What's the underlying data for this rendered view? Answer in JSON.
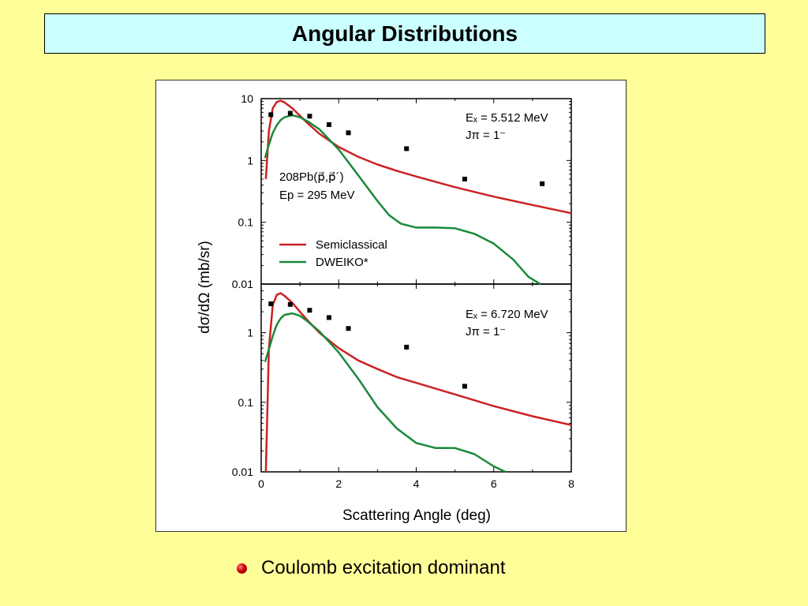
{
  "slide": {
    "title": "Angular Distributions",
    "bullets": [
      {
        "text": "Coulomb excitation dominant",
        "icon": "red-sphere-bullet-icon"
      }
    ]
  },
  "colors": {
    "background": "#ffff99",
    "title_fill": "#ccffff",
    "semiclassical": "#cc2222",
    "dweiko": "#1a8a3a",
    "data_points": "#000000"
  },
  "chart_data": [
    {
      "type": "line",
      "panel": "top",
      "xlabel": "Scattering Angle (deg)",
      "ylabel": "dσ/dΩ (mb/sr)",
      "xlim": [
        0,
        8
      ],
      "ylim": [
        0.01,
        10
      ],
      "yscale": "log",
      "yticks": [
        "10",
        "1",
        "0.1",
        "0.01"
      ],
      "xticks": [],
      "annotations": {
        "energy": "Eₓ = 5.512 MeV",
        "spin": "Jπ = 1⁻",
        "reaction": "208Pb(p⃗,p⃗´)",
        "beam": "Ep = 295 MeV"
      },
      "legend": [
        {
          "name": "Semiclassical",
          "color": "#cc2222"
        },
        {
          "name": "DWEIKO*",
          "color": "#1a8a3a"
        }
      ],
      "series": [
        {
          "name": "Semiclassical",
          "color": "#cc2222",
          "x": [
            0.12,
            0.2,
            0.3,
            0.4,
            0.5,
            0.6,
            0.8,
            1.0,
            1.2,
            1.5,
            2.0,
            2.5,
            3.0,
            3.5,
            4.0,
            5.0,
            6.0,
            7.0,
            8.0
          ],
          "y": [
            0.5,
            3.0,
            7.0,
            8.8,
            9.3,
            8.7,
            7.0,
            5.3,
            4.0,
            2.7,
            1.65,
            1.15,
            0.86,
            0.68,
            0.55,
            0.37,
            0.26,
            0.19,
            0.14
          ]
        },
        {
          "name": "DWEIKO*",
          "color": "#1a8a3a",
          "x": [
            0.1,
            0.2,
            0.3,
            0.4,
            0.5,
            0.6,
            0.8,
            1.0,
            1.2,
            1.5,
            2.0,
            2.5,
            3.0,
            3.3,
            3.6,
            4.0,
            4.5,
            5.0,
            5.5,
            6.0,
            6.5,
            6.9,
            7.2
          ],
          "y": [
            1.1,
            1.8,
            2.8,
            3.7,
            4.5,
            5.0,
            5.4,
            5.0,
            4.3,
            3.2,
            1.5,
            0.58,
            0.22,
            0.13,
            0.095,
            0.082,
            0.082,
            0.08,
            0.065,
            0.045,
            0.025,
            0.013,
            0.0085
          ]
        },
        {
          "name": "data",
          "color": "#000000",
          "type": "scatter",
          "x": [
            0.25,
            0.75,
            1.25,
            1.75,
            2.25,
            3.75,
            5.25,
            7.25
          ],
          "y": [
            5.5,
            5.8,
            5.2,
            3.8,
            2.8,
            1.55,
            0.5,
            0.42
          ]
        }
      ]
    },
    {
      "type": "line",
      "panel": "bottom",
      "xlabel": "Scattering Angle (deg)",
      "ylabel": "dσ/dΩ (mb/sr)",
      "xlim": [
        0,
        8
      ],
      "ylim": [
        0.01,
        5
      ],
      "yscale": "log",
      "yticks": [
        "1",
        "0.1",
        "0.01"
      ],
      "xticks": [
        "0",
        "2",
        "4",
        "6",
        "8"
      ],
      "annotations": {
        "energy": "Eₓ = 6.720 MeV",
        "spin": "Jπ = 1⁻"
      },
      "series": [
        {
          "name": "Semiclassical",
          "color": "#cc2222",
          "x": [
            0.12,
            0.2,
            0.3,
            0.4,
            0.5,
            0.6,
            0.8,
            1.0,
            1.2,
            1.5,
            2.0,
            2.5,
            3.0,
            3.5,
            4.0,
            5.0,
            6.0,
            7.0,
            8.0
          ],
          "y": [
            0.01,
            0.6,
            2.5,
            3.5,
            3.7,
            3.4,
            2.7,
            2.0,
            1.5,
            1.0,
            0.6,
            0.4,
            0.3,
            0.23,
            0.19,
            0.13,
            0.088,
            0.063,
            0.047
          ]
        },
        {
          "name": "DWEIKO*",
          "color": "#1a8a3a",
          "x": [
            0.1,
            0.2,
            0.3,
            0.4,
            0.5,
            0.6,
            0.8,
            1.0,
            1.2,
            1.5,
            2.0,
            2.5,
            3.0,
            3.5,
            4.0,
            4.5,
            5.0,
            5.5,
            6.0,
            6.3
          ],
          "y": [
            0.38,
            0.58,
            0.9,
            1.3,
            1.6,
            1.8,
            1.9,
            1.75,
            1.45,
            1.05,
            0.52,
            0.22,
            0.085,
            0.042,
            0.026,
            0.022,
            0.022,
            0.018,
            0.012,
            0.0095
          ]
        },
        {
          "name": "data",
          "color": "#000000",
          "type": "scatter",
          "x": [
            0.25,
            0.75,
            1.25,
            1.75,
            2.25,
            3.75,
            5.25
          ],
          "y": [
            2.6,
            2.55,
            2.1,
            1.65,
            1.15,
            0.62,
            0.17
          ]
        }
      ]
    }
  ]
}
